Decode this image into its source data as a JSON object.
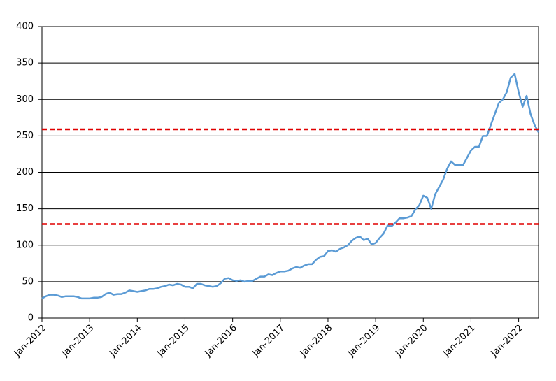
{
  "chart_data": {
    "type": "line",
    "x": [
      "2012-01",
      "2012-02",
      "2012-03",
      "2012-04",
      "2012-05",
      "2012-06",
      "2012-07",
      "2012-08",
      "2012-09",
      "2012-10",
      "2012-11",
      "2012-12",
      "2013-01",
      "2013-02",
      "2013-03",
      "2013-04",
      "2013-05",
      "2013-06",
      "2013-07",
      "2013-08",
      "2013-09",
      "2013-10",
      "2013-11",
      "2013-12",
      "2014-01",
      "2014-02",
      "2014-03",
      "2014-04",
      "2014-05",
      "2014-06",
      "2014-07",
      "2014-08",
      "2014-09",
      "2014-10",
      "2014-11",
      "2014-12",
      "2015-01",
      "2015-02",
      "2015-03",
      "2015-04",
      "2015-05",
      "2015-06",
      "2015-07",
      "2015-08",
      "2015-09",
      "2015-10",
      "2015-11",
      "2015-12",
      "2016-01",
      "2016-02",
      "2016-03",
      "2016-04",
      "2016-05",
      "2016-06",
      "2016-07",
      "2016-08",
      "2016-09",
      "2016-10",
      "2016-11",
      "2016-12",
      "2017-01",
      "2017-02",
      "2017-03",
      "2017-04",
      "2017-05",
      "2017-06",
      "2017-07",
      "2017-08",
      "2017-09",
      "2017-10",
      "2017-11",
      "2017-12",
      "2018-01",
      "2018-02",
      "2018-03",
      "2018-04",
      "2018-05",
      "2018-06",
      "2018-07",
      "2018-08",
      "2018-09",
      "2018-10",
      "2018-11",
      "2018-12",
      "2019-01",
      "2019-02",
      "2019-03",
      "2019-04",
      "2019-05",
      "2019-06",
      "2019-07",
      "2019-08",
      "2019-09",
      "2019-10",
      "2019-11",
      "2019-12",
      "2020-01",
      "2020-02",
      "2020-03",
      "2020-04",
      "2020-05",
      "2020-06",
      "2020-07",
      "2020-08",
      "2020-09",
      "2020-10",
      "2020-11",
      "2020-12",
      "2021-01",
      "2021-02",
      "2021-03",
      "2021-04",
      "2021-05",
      "2021-06",
      "2021-07",
      "2021-08",
      "2021-09",
      "2021-10",
      "2021-11",
      "2021-12",
      "2022-01",
      "2022-02",
      "2022-03",
      "2022-04",
      "2022-05",
      "2022-06"
    ],
    "series": [
      {
        "color": "#5b9bd5",
        "values": [
          27,
          30,
          32,
          32,
          31,
          29,
          30,
          30,
          30,
          29,
          27,
          27,
          27,
          28,
          28,
          29,
          33,
          35,
          32,
          33,
          33,
          35,
          38,
          37,
          36,
          37,
          38,
          40,
          40,
          41,
          43,
          44,
          46,
          45,
          47,
          46,
          43,
          43,
          41,
          47,
          47,
          45,
          44,
          43,
          44,
          48,
          54,
          55,
          52,
          51,
          52,
          50,
          51,
          51,
          54,
          57,
          57,
          60,
          59,
          62,
          64,
          64,
          65,
          68,
          70,
          69,
          72,
          74,
          74,
          80,
          84,
          85,
          92,
          93,
          91,
          95,
          97,
          100,
          106,
          110,
          112,
          107,
          109,
          101,
          103,
          110,
          116,
          127,
          126,
          131,
          137,
          137,
          138,
          140,
          149,
          155,
          168,
          165,
          150,
          170,
          180,
          190,
          205,
          215,
          210,
          210,
          210,
          220,
          230,
          235,
          235,
          250,
          250,
          265,
          280,
          295,
          300,
          310,
          330,
          335,
          310,
          290,
          305,
          280,
          265,
          255
        ]
      }
    ],
    "xlim": [
      "2012-01",
      "2022-06"
    ],
    "xticks": [
      {
        "value": "2012-01",
        "label": "Jan-2012"
      },
      {
        "value": "2013-01",
        "label": "Jan-2013"
      },
      {
        "value": "2014-01",
        "label": "Jan-2014"
      },
      {
        "value": "2015-01",
        "label": "Jan-2015"
      },
      {
        "value": "2016-01",
        "label": "Jan-2016"
      },
      {
        "value": "2017-01",
        "label": "Jan-2017"
      },
      {
        "value": "2018-01",
        "label": "Jan-2018"
      },
      {
        "value": "2019-01",
        "label": "Jan-2019"
      },
      {
        "value": "2020-01",
        "label": "Jan-2020"
      },
      {
        "value": "2021-01",
        "label": "Jan-2021"
      },
      {
        "value": "2022-01",
        "label": "Jan-2022"
      }
    ],
    "ylim": [
      0,
      400
    ],
    "yticks": [
      0,
      50,
      100,
      150,
      200,
      250,
      300,
      350,
      400
    ],
    "grid": true,
    "hlines": [
      {
        "value": 259,
        "color": "#e00000"
      },
      {
        "value": 129,
        "color": "#e00000"
      }
    ]
  }
}
